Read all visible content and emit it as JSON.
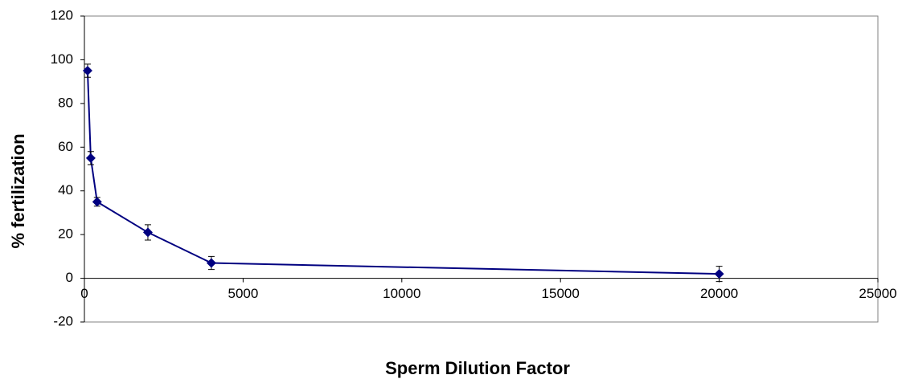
{
  "chart_data": {
    "type": "line",
    "x_label": "Sperm Dilution Factor",
    "y_label": "% fertilization",
    "series": [
      {
        "color": "#000080",
        "x": [
          100,
          200,
          400,
          2000,
          4000,
          20000
        ],
        "values": [
          95,
          55,
          35,
          21,
          7,
          2
        ],
        "errors": [
          3,
          3,
          2,
          3.5,
          3,
          3.5
        ]
      }
    ],
    "xlim": [
      0,
      25000
    ],
    "xticks": [
      0,
      5000,
      10000,
      15000,
      20000,
      25000
    ],
    "ylim": [
      -20,
      120
    ],
    "yticks": [
      -20,
      0,
      20,
      40,
      60,
      80,
      100,
      120
    ],
    "grid": false
  }
}
